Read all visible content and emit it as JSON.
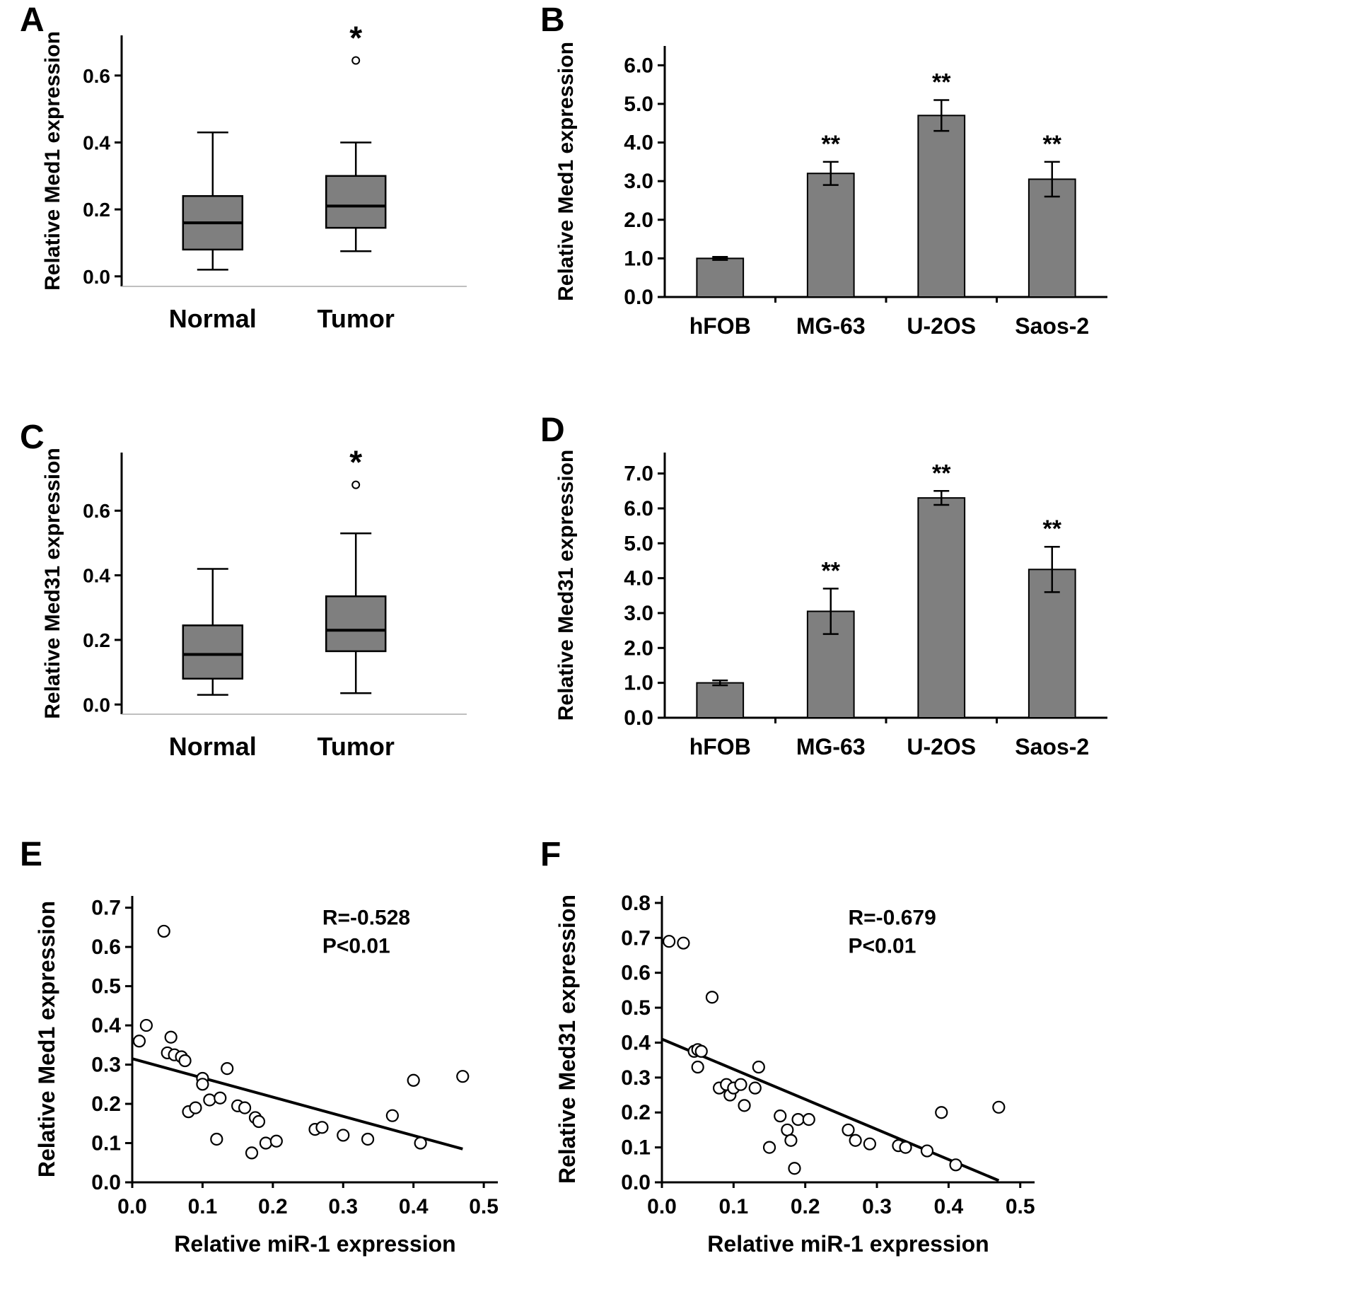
{
  "figure": {
    "background": "#ffffff"
  },
  "panels": {
    "A": {
      "label": "A"
    },
    "B": {
      "label": "B"
    },
    "C": {
      "label": "C"
    },
    "D": {
      "label": "D"
    },
    "E": {
      "label": "E"
    },
    "F": {
      "label": "F"
    }
  },
  "chart_data": [
    {
      "id": "A",
      "type": "boxplot",
      "ylabel": "Relative Med1 expression",
      "categories": [
        "Normal",
        "Tumor"
      ],
      "ytick_values": [
        0.0,
        0.2,
        0.4,
        0.6
      ],
      "ytick_labels": [
        "0.0",
        "0.2",
        "0.4",
        "0.6"
      ],
      "ylim": [
        -0.03,
        0.72
      ],
      "box_fill": "#7f7f7f",
      "boxes": [
        {
          "category": "Normal",
          "whisker_low": 0.02,
          "q1": 0.08,
          "median": 0.16,
          "q3": 0.24,
          "whisker_high": 0.43,
          "outliers": [],
          "annotation": ""
        },
        {
          "category": "Tumor",
          "whisker_low": 0.075,
          "q1": 0.145,
          "median": 0.21,
          "q3": 0.3,
          "whisker_high": 0.4,
          "outliers": [
            0.645
          ],
          "annotation": "*"
        }
      ]
    },
    {
      "id": "B",
      "type": "bar",
      "ylabel": "Relative Med1 expression",
      "categories": [
        "hFOB",
        "MG-63",
        "U-2OS",
        "Saos-2"
      ],
      "values": [
        1.0,
        3.2,
        4.7,
        3.05
      ],
      "errors": [
        0.04,
        0.3,
        0.4,
        0.45
      ],
      "annotations": [
        "",
        "**",
        "**",
        "**"
      ],
      "ytick_values": [
        0,
        1,
        2,
        3,
        4,
        5,
        6
      ],
      "ytick_labels": [
        "0.0",
        "1.0",
        "2.0",
        "3.0",
        "4.0",
        "5.0",
        "6.0"
      ],
      "ylim": [
        0,
        6.5
      ],
      "bar_fill": "#7f7f7f"
    },
    {
      "id": "C",
      "type": "boxplot",
      "ylabel": "Relative Med31 expression",
      "categories": [
        "Normal",
        "Tumor"
      ],
      "ytick_values": [
        0.0,
        0.2,
        0.4,
        0.6
      ],
      "ytick_labels": [
        "0.0",
        "0.2",
        "0.4",
        "0.6"
      ],
      "ylim": [
        -0.03,
        0.78
      ],
      "box_fill": "#7f7f7f",
      "boxes": [
        {
          "category": "Normal",
          "whisker_low": 0.03,
          "q1": 0.08,
          "median": 0.155,
          "q3": 0.245,
          "whisker_high": 0.42,
          "outliers": [],
          "annotation": ""
        },
        {
          "category": "Tumor",
          "whisker_low": 0.035,
          "q1": 0.165,
          "median": 0.23,
          "q3": 0.335,
          "whisker_high": 0.53,
          "outliers": [
            0.68
          ],
          "annotation": "*"
        }
      ]
    },
    {
      "id": "D",
      "type": "bar",
      "ylabel": "Relative Med31 expression",
      "categories": [
        "hFOB",
        "MG-63",
        "U-2OS",
        "Saos-2"
      ],
      "values": [
        1.0,
        3.05,
        6.3,
        4.25
      ],
      "errors": [
        0.07,
        0.65,
        0.2,
        0.65
      ],
      "annotations": [
        "",
        "**",
        "**",
        "**"
      ],
      "ytick_values": [
        0,
        1,
        2,
        3,
        4,
        5,
        6,
        7
      ],
      "ytick_labels": [
        "0.0",
        "1.0",
        "2.0",
        "3.0",
        "4.0",
        "5.0",
        "6.0",
        "7.0"
      ],
      "ylim": [
        0,
        7.6
      ],
      "bar_fill": "#7f7f7f"
    },
    {
      "id": "E",
      "type": "scatter",
      "xlabel": "Relative miR-1 expression",
      "ylabel": "Relative Med1 expression",
      "annotation_lines": [
        "R=-0.528",
        "P<0.01"
      ],
      "xtick_values": [
        0,
        0.1,
        0.2,
        0.3,
        0.4,
        0.5
      ],
      "xtick_labels": [
        "0.0",
        "0.1",
        "0.2",
        "0.3",
        "0.4",
        "0.5"
      ],
      "ytick_values": [
        0,
        0.1,
        0.2,
        0.3,
        0.4,
        0.5,
        0.6,
        0.7
      ],
      "ytick_labels": [
        "0.0",
        "0.1",
        "0.2",
        "0.3",
        "0.4",
        "0.5",
        "0.6",
        "0.7"
      ],
      "xlim": [
        0,
        0.52
      ],
      "ylim": [
        0,
        0.73
      ],
      "regression": {
        "x1": 0.0,
        "y1": 0.315,
        "x2": 0.47,
        "y2": 0.085
      },
      "points": [
        [
          0.01,
          0.36
        ],
        [
          0.02,
          0.4
        ],
        [
          0.045,
          0.64
        ],
        [
          0.05,
          0.33
        ],
        [
          0.055,
          0.37
        ],
        [
          0.06,
          0.325
        ],
        [
          0.07,
          0.32
        ],
        [
          0.075,
          0.31
        ],
        [
          0.08,
          0.18
        ],
        [
          0.09,
          0.19
        ],
        [
          0.1,
          0.265
        ],
        [
          0.1,
          0.25
        ],
        [
          0.11,
          0.21
        ],
        [
          0.12,
          0.11
        ],
        [
          0.125,
          0.215
        ],
        [
          0.135,
          0.29
        ],
        [
          0.15,
          0.195
        ],
        [
          0.16,
          0.19
        ],
        [
          0.17,
          0.075
        ],
        [
          0.175,
          0.165
        ],
        [
          0.18,
          0.155
        ],
        [
          0.19,
          0.1
        ],
        [
          0.205,
          0.105
        ],
        [
          0.26,
          0.135
        ],
        [
          0.27,
          0.14
        ],
        [
          0.3,
          0.12
        ],
        [
          0.335,
          0.11
        ],
        [
          0.37,
          0.17
        ],
        [
          0.4,
          0.26
        ],
        [
          0.41,
          0.1
        ],
        [
          0.47,
          0.27
        ]
      ]
    },
    {
      "id": "F",
      "type": "scatter",
      "xlabel": "Relative miR-1 expression",
      "ylabel": "Relative Med31 expression",
      "annotation_lines": [
        "R=-0.679",
        "P<0.01"
      ],
      "xtick_values": [
        0,
        0.1,
        0.2,
        0.3,
        0.4,
        0.5
      ],
      "xtick_labels": [
        "0.0",
        "0.1",
        "0.2",
        "0.3",
        "0.4",
        "0.5"
      ],
      "ytick_values": [
        0,
        0.1,
        0.2,
        0.3,
        0.4,
        0.5,
        0.6,
        0.7,
        0.8
      ],
      "ytick_labels": [
        "0.0",
        "0.1",
        "0.2",
        "0.3",
        "0.4",
        "0.5",
        "0.6",
        "0.7",
        "0.8"
      ],
      "xlim": [
        0,
        0.52
      ],
      "ylim": [
        0,
        0.82
      ],
      "regression": {
        "x1": 0.0,
        "y1": 0.41,
        "x2": 0.47,
        "y2": 0.005
      },
      "points": [
        [
          0.01,
          0.69
        ],
        [
          0.03,
          0.685
        ],
        [
          0.045,
          0.375
        ],
        [
          0.05,
          0.38
        ],
        [
          0.055,
          0.375
        ],
        [
          0.05,
          0.33
        ],
        [
          0.07,
          0.53
        ],
        [
          0.08,
          0.27
        ],
        [
          0.09,
          0.28
        ],
        [
          0.095,
          0.25
        ],
        [
          0.1,
          0.27
        ],
        [
          0.11,
          0.28
        ],
        [
          0.115,
          0.22
        ],
        [
          0.13,
          0.27
        ],
        [
          0.135,
          0.33
        ],
        [
          0.15,
          0.1
        ],
        [
          0.165,
          0.19
        ],
        [
          0.175,
          0.15
        ],
        [
          0.18,
          0.12
        ],
        [
          0.185,
          0.04
        ],
        [
          0.19,
          0.18
        ],
        [
          0.205,
          0.18
        ],
        [
          0.26,
          0.15
        ],
        [
          0.27,
          0.12
        ],
        [
          0.29,
          0.11
        ],
        [
          0.33,
          0.105
        ],
        [
          0.34,
          0.1
        ],
        [
          0.37,
          0.09
        ],
        [
          0.39,
          0.2
        ],
        [
          0.41,
          0.05
        ],
        [
          0.47,
          0.215
        ]
      ]
    }
  ]
}
